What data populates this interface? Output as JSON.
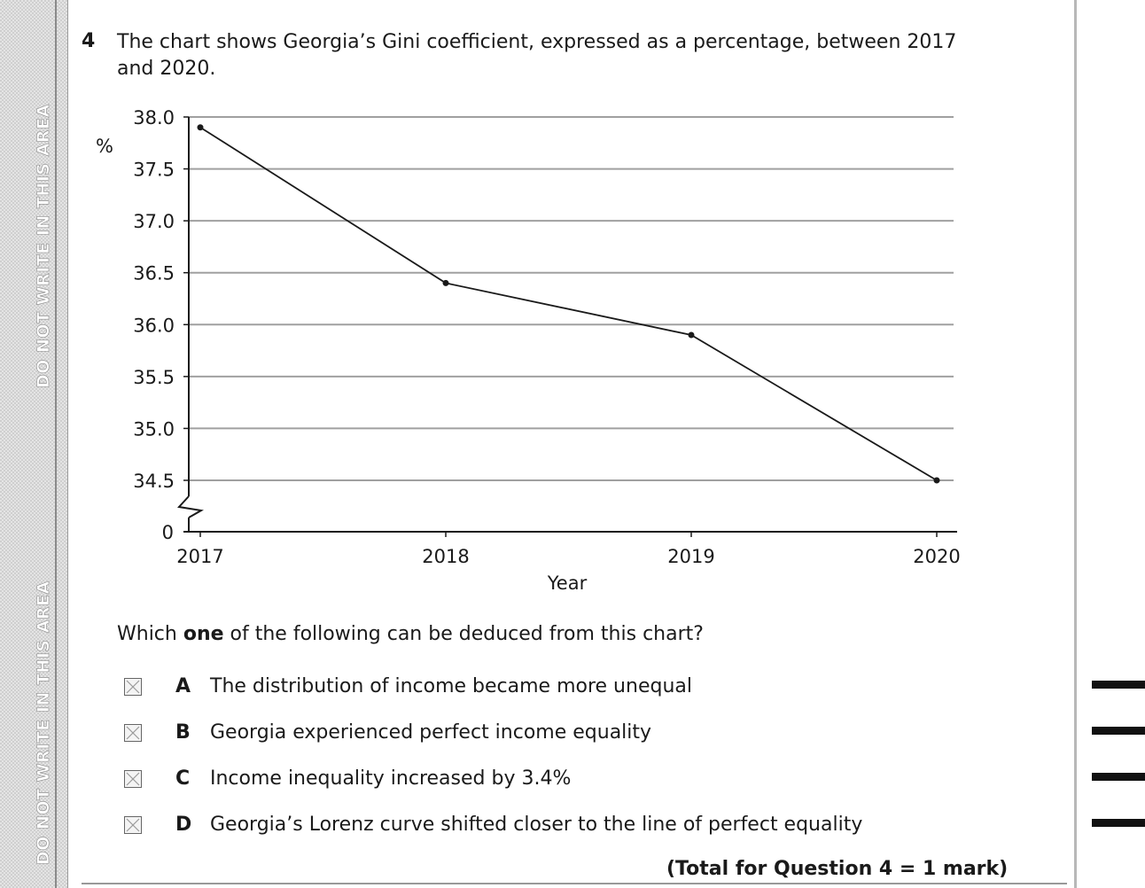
{
  "margin": {
    "warning_top": "DO NOT WRITE IN THIS AREA",
    "warning_bottom": "DO NOT WRITE IN THIS AREA"
  },
  "question": {
    "number": "4",
    "text": "The chart shows Georgia’s Gini coefficient, expressed as a percentage, between 2017 and 2020.",
    "prompt_before": "Which ",
    "prompt_bold": "one",
    "prompt_after": " of the following can be deduced from this chart?",
    "options": [
      {
        "letter": "A",
        "text": "The distribution of income became more unequal"
      },
      {
        "letter": "B",
        "text": "Georgia experienced perfect income equality"
      },
      {
        "letter": "C",
        "text": "Income inequality increased by 3.4%"
      },
      {
        "letter": "D",
        "text": "Georgia’s Lorenz curve shifted closer to the line of perfect equality"
      }
    ],
    "total": "(Total for Question 4 = 1 mark)"
  },
  "chart_data": {
    "type": "line",
    "x": [
      "2017",
      "2018",
      "2019",
      "2020"
    ],
    "series": [
      {
        "values": [
          37.9,
          36.4,
          35.9,
          34.5
        ]
      }
    ],
    "title": "",
    "xlabel": "Year",
    "ylabel": "%",
    "yticks": [
      "38.0",
      "37.5",
      "37.0",
      "36.5",
      "36.0",
      "35.5",
      "35.0",
      "34.5"
    ],
    "ybreak_label": "0",
    "ylim": [
      34.5,
      38.0
    ],
    "y_axis_break": true,
    "grid": true,
    "line_color": "#1a1a1a",
    "grid_color": "#a0a0a0"
  }
}
